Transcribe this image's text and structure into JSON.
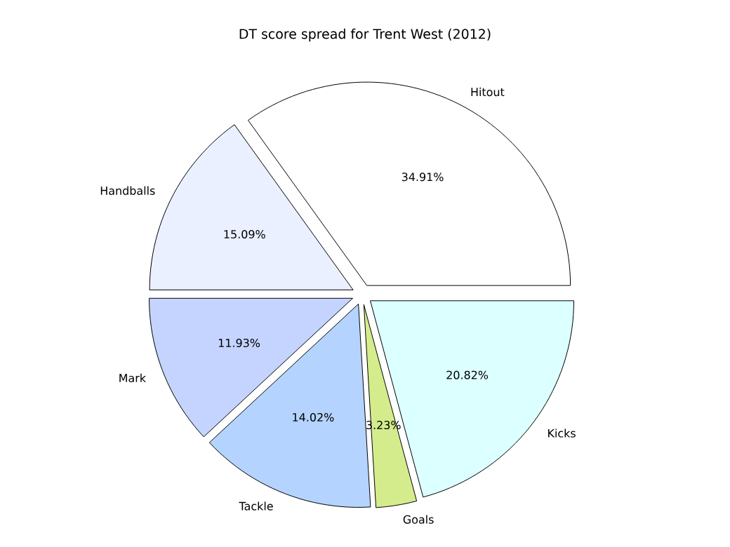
{
  "chart_data": {
    "type": "pie",
    "title": "DT score spread for Trent West (2012)",
    "categories": [
      "Hitout",
      "Handballs",
      "Mark",
      "Tackle",
      "Goals",
      "Kicks"
    ],
    "values": [
      34.91,
      15.09,
      11.93,
      14.02,
      3.23,
      20.82
    ],
    "colors": [
      "#ffffff",
      "#eaf0ff",
      "#c4d4ff",
      "#b4d4ff",
      "#d4ec8c",
      "#dcffff"
    ],
    "value_labels": [
      "34.91%",
      "15.09%",
      "11.93%",
      "14.02%",
      "3.23%",
      "20.82%"
    ]
  }
}
